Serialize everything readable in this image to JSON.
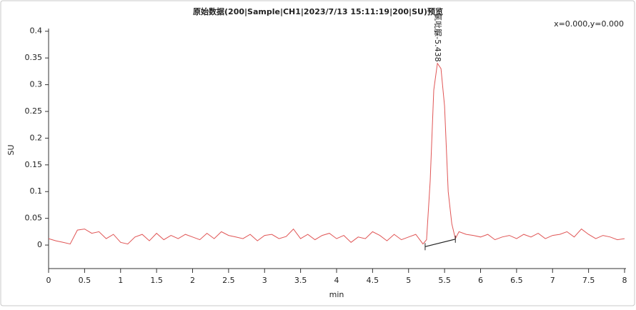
{
  "chart_data": {
    "type": "line",
    "title": "原始数据(200|Sample|CH1|2023/7/13  15:11:19|200|SU)预览",
    "cursor_readout": "x=0.000,y=0.000",
    "x_label": "min",
    "y_label": "SU",
    "x": [
      0,
      0.1,
      0.2,
      0.3,
      0.4,
      0.5,
      0.6,
      0.7,
      0.8,
      0.9,
      1.0,
      1.1,
      1.2,
      1.3,
      1.4,
      1.5,
      1.6,
      1.7,
      1.8,
      1.9,
      2.0,
      2.1,
      2.2,
      2.3,
      2.4,
      2.5,
      2.6,
      2.7,
      2.8,
      2.9,
      3.0,
      3.1,
      3.2,
      3.3,
      3.4,
      3.5,
      3.6,
      3.7,
      3.8,
      3.9,
      4.0,
      4.1,
      4.2,
      4.3,
      4.4,
      4.5,
      4.6,
      4.7,
      4.8,
      4.9,
      5.0,
      5.1,
      5.2,
      5.25,
      5.3,
      5.35,
      5.4,
      5.45,
      5.5,
      5.55,
      5.6,
      5.65,
      5.7,
      5.8,
      5.9,
      6.0,
      6.1,
      6.2,
      6.3,
      6.4,
      6.5,
      6.6,
      6.7,
      6.8,
      6.9,
      7.0,
      7.1,
      7.2,
      7.3,
      7.4,
      7.5,
      7.6,
      7.7,
      7.8,
      7.9,
      8.0
    ],
    "series": [
      {
        "color": "#e05555",
        "values": [
          0.012,
          0.008,
          0.005,
          0.002,
          0.028,
          0.03,
          0.022,
          0.025,
          0.012,
          0.02,
          0.005,
          0.002,
          0.015,
          0.02,
          0.008,
          0.022,
          0.01,
          0.018,
          0.012,
          0.02,
          0.015,
          0.01,
          0.022,
          0.012,
          0.025,
          0.018,
          0.015,
          0.012,
          0.02,
          0.008,
          0.018,
          0.02,
          0.012,
          0.016,
          0.03,
          0.012,
          0.02,
          0.01,
          0.018,
          0.022,
          0.012,
          0.018,
          0.005,
          0.015,
          0.012,
          0.025,
          0.018,
          0.008,
          0.02,
          0.01,
          0.015,
          0.02,
          0.002,
          0.01,
          0.12,
          0.29,
          0.34,
          0.33,
          0.26,
          0.1,
          0.04,
          0.012,
          0.025,
          0.02,
          0.018,
          0.015,
          0.02,
          0.01,
          0.015,
          0.018,
          0.012,
          0.02,
          0.015,
          0.022,
          0.012,
          0.018,
          0.02,
          0.025,
          0.015,
          0.03,
          0.02,
          0.012,
          0.018,
          0.015,
          0.01,
          0.012
        ]
      }
    ],
    "peak_label": "氯吡脲-5.438",
    "baseline": {
      "x": [
        5.23,
        5.65
      ],
      "y": [
        -0.003,
        0.011
      ]
    },
    "xlim": [
      0,
      8
    ],
    "ylim": [
      -0.044,
      0.405
    ],
    "xticks": [
      0,
      0.5,
      1,
      1.5,
      2,
      2.5,
      3,
      3.5,
      4,
      4.5,
      5,
      5.5,
      6,
      6.5,
      7,
      7.5,
      8
    ],
    "yticks": [
      0,
      0.05,
      0.1,
      0.15,
      0.2,
      0.25,
      0.3,
      0.35,
      0.4
    ]
  }
}
